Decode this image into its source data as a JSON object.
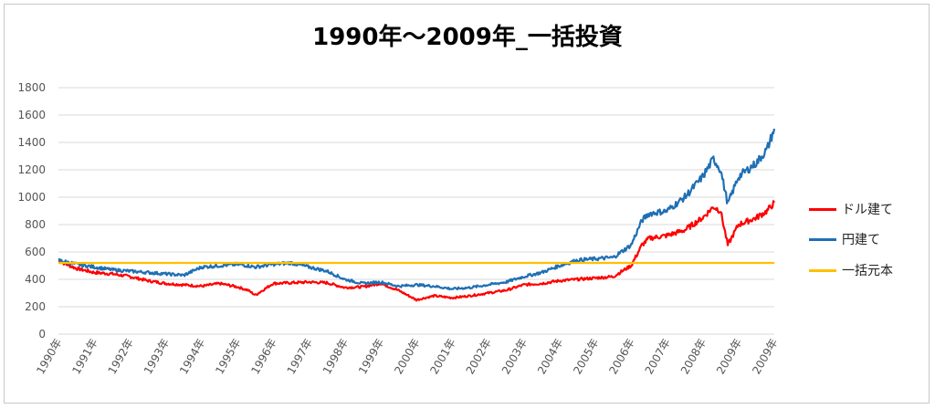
{
  "chart_data": {
    "type": "line",
    "title": "1990年～2009年_一括投資",
    "xlabel": "",
    "ylabel": "",
    "ylim": [
      0,
      1800
    ],
    "y_ticks": [
      0,
      200,
      400,
      600,
      800,
      1000,
      1200,
      1400,
      1600,
      1800
    ],
    "x_tick_labels": [
      "1990年",
      "1991年",
      "1992年",
      "1993年",
      "1994年",
      "1995年",
      "1996年",
      "1997年",
      "1998年",
      "1999年",
      "2000年",
      "2001年",
      "2002年",
      "2003年",
      "2004年",
      "2005年",
      "2006年",
      "2007年",
      "2008年",
      "2009年",
      "2009年"
    ],
    "grid": true,
    "legend_position": "right",
    "series": [
      {
        "name": "ドル建て",
        "color": "#ff0000",
        "x": [
          1990.0,
          1990.5,
          1991.0,
          1991.5,
          1992.0,
          1992.5,
          1993.0,
          1993.5,
          1994.0,
          1994.5,
          1995.0,
          1995.3,
          1995.5,
          1996.0,
          1996.5,
          1997.0,
          1997.5,
          1998.0,
          1998.5,
          1999.0,
          1999.5,
          2000.0,
          2000.5,
          2001.0,
          2001.5,
          2002.0,
          2002.5,
          2003.0,
          2003.5,
          2004.0,
          2004.5,
          2005.0,
          2005.5,
          2006.0,
          2006.3,
          2006.5,
          2007.0,
          2007.5,
          2008.0,
          2008.3,
          2008.5,
          2008.7,
          2009.0,
          2009.5,
          2009.8,
          2010.0
        ],
        "values": [
          535,
          480,
          450,
          440,
          420,
          390,
          370,
          360,
          350,
          370,
          345,
          320,
          285,
          370,
          375,
          380,
          375,
          340,
          345,
          370,
          320,
          250,
          280,
          265,
          280,
          300,
          320,
          360,
          370,
          390,
          400,
          410,
          420,
          500,
          650,
          700,
          720,
          760,
          850,
          930,
          900,
          650,
          800,
          850,
          900,
          960
        ]
      },
      {
        "name": "円建て",
        "color": "#1f6fb4",
        "x": [
          1990.0,
          1990.5,
          1991.0,
          1991.5,
          1992.0,
          1992.5,
          1993.0,
          1993.5,
          1994.0,
          1994.5,
          1995.0,
          1995.3,
          1995.5,
          1996.0,
          1996.5,
          1997.0,
          1997.5,
          1998.0,
          1998.5,
          1999.0,
          1999.5,
          2000.0,
          2000.5,
          2001.0,
          2001.5,
          2002.0,
          2002.5,
          2003.0,
          2003.5,
          2004.0,
          2004.5,
          2005.0,
          2005.5,
          2006.0,
          2006.3,
          2006.5,
          2007.0,
          2007.5,
          2008.0,
          2008.3,
          2008.5,
          2008.7,
          2009.0,
          2009.5,
          2009.8,
          2010.0
        ],
        "values": [
          540,
          510,
          490,
          470,
          460,
          450,
          440,
          430,
          490,
          500,
          510,
          500,
          490,
          510,
          520,
          490,
          460,
          400,
          370,
          380,
          350,
          360,
          350,
          330,
          340,
          360,
          380,
          420,
          450,
          500,
          540,
          550,
          560,
          650,
          830,
          880,
          900,
          1000,
          1150,
          1280,
          1200,
          950,
          1150,
          1250,
          1350,
          1500
        ]
      },
      {
        "name": "一括元本",
        "color": "#ffc000",
        "x": [
          1990.0,
          2010.0
        ],
        "values": [
          520,
          520
        ]
      }
    ]
  }
}
